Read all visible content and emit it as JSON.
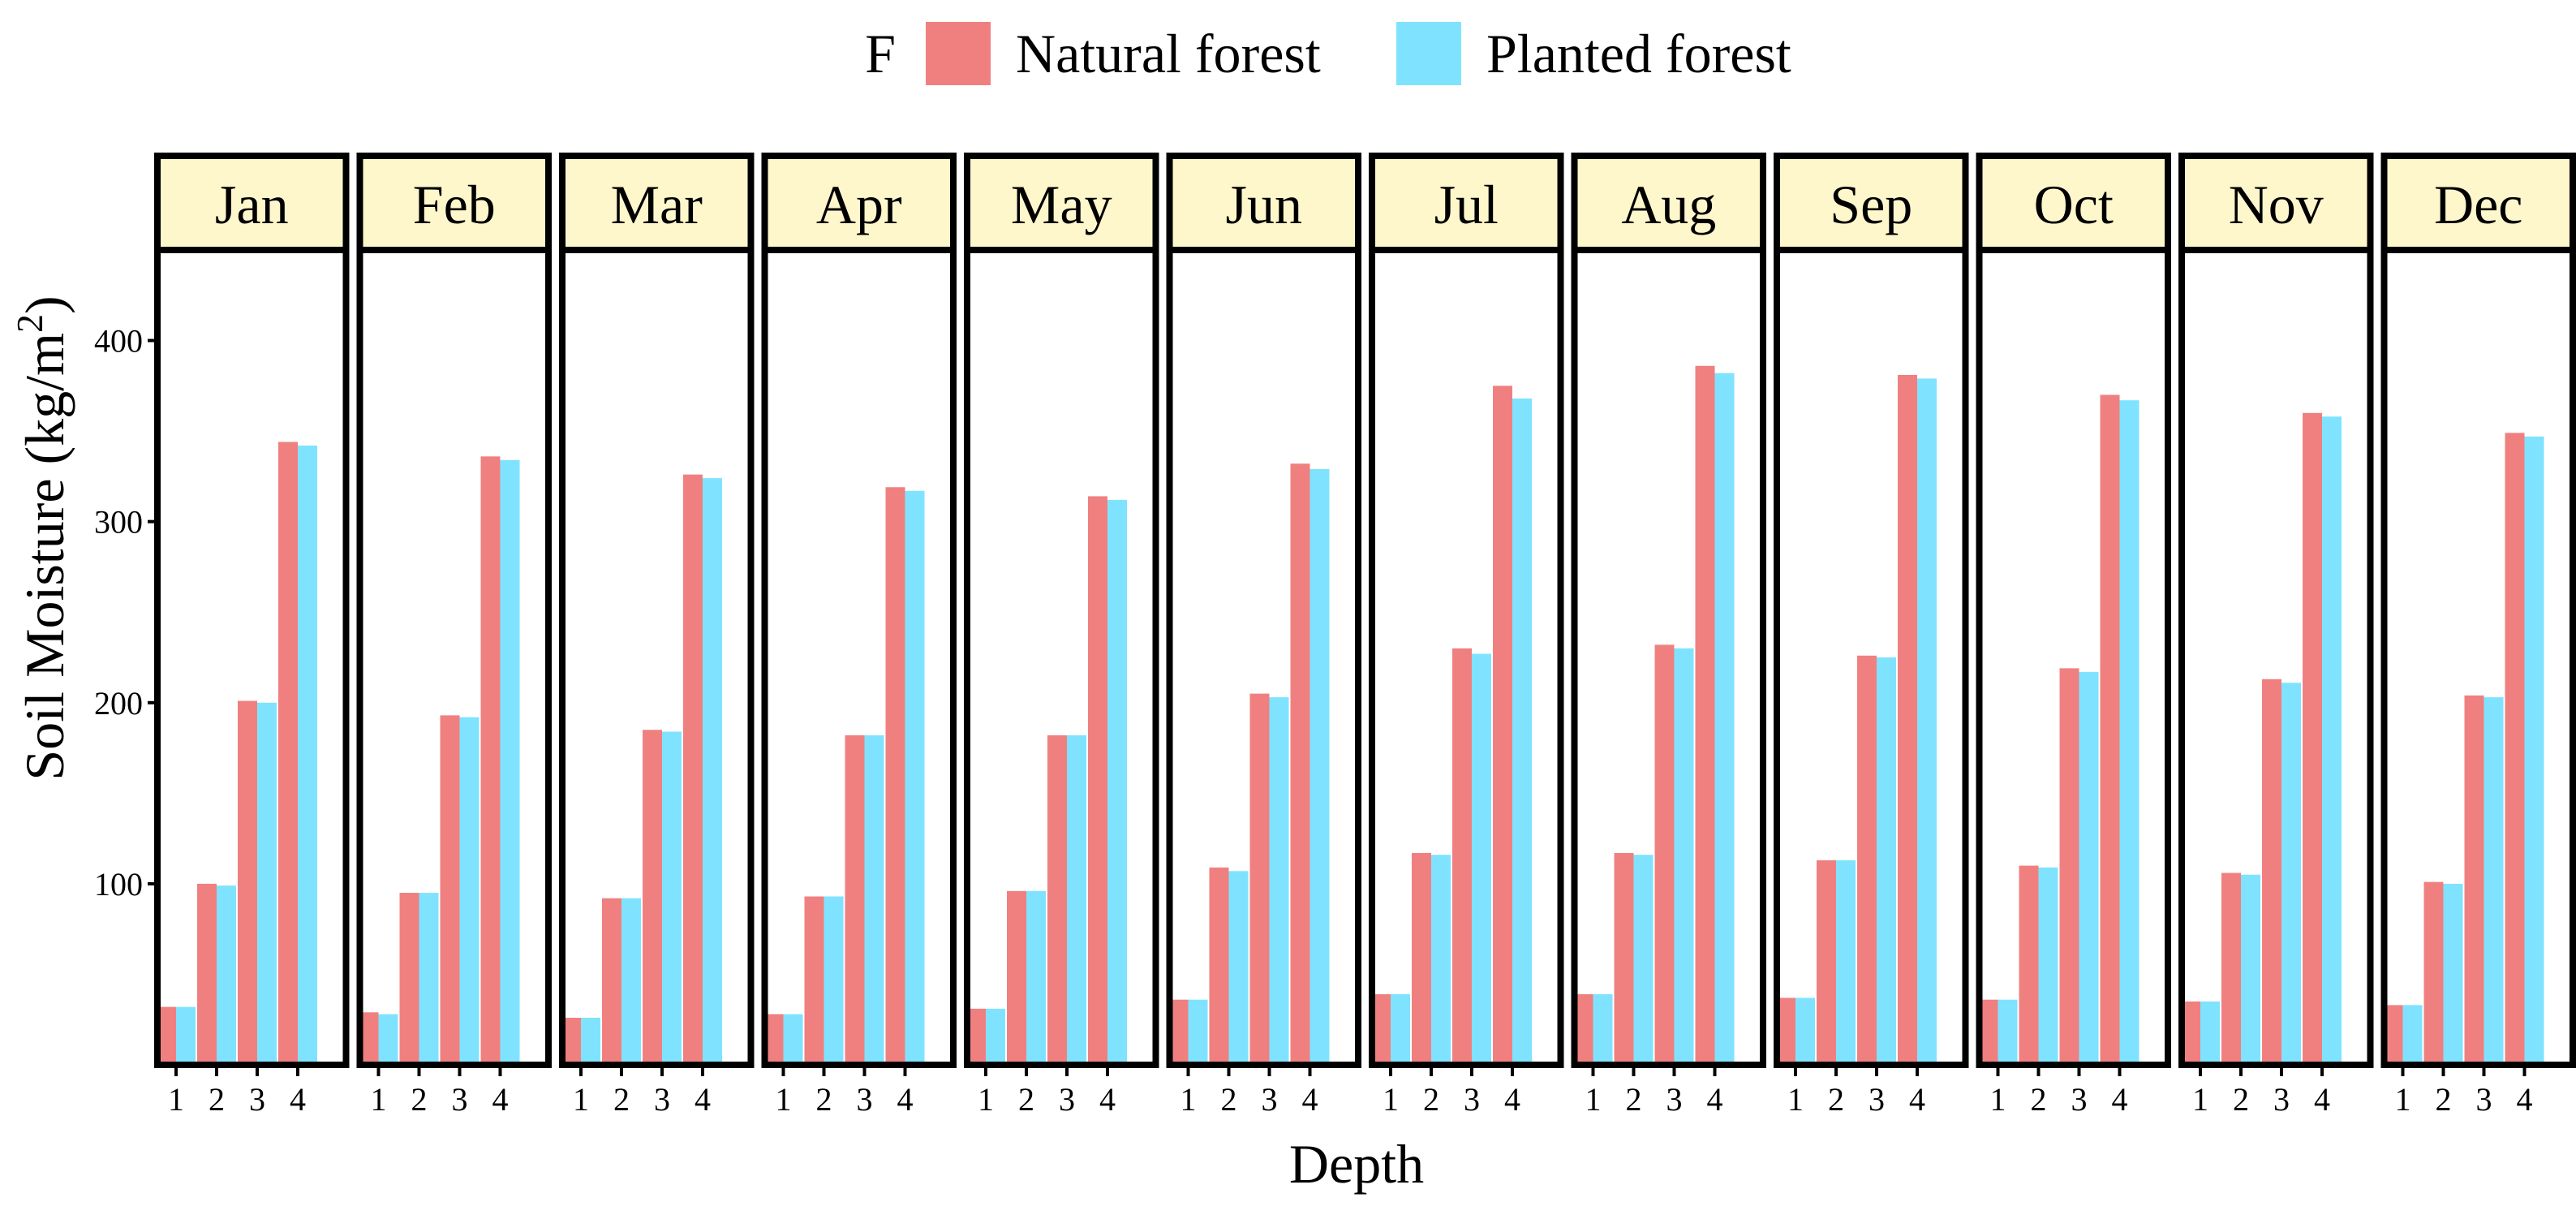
{
  "chart_data": {
    "type": "bar",
    "layout": "faceted",
    "legend": {
      "title": "F",
      "position": "top"
    },
    "xlabel": "Depth",
    "ylabel": "Soil Moisture  (kg/m",
    "ylabel_superscript": "2",
    "ylabel_close": ")",
    "ylim": [
      0,
      450
    ],
    "yticks": [
      100,
      200,
      300,
      400
    ],
    "categories": [
      "1",
      "2",
      "3",
      "4"
    ],
    "series": [
      {
        "name": "Natural forest",
        "color": "#F08080"
      },
      {
        "name": "Planted forest",
        "color": "#7FE3FF"
      }
    ],
    "strip_color": "#FFF7CC",
    "panels": [
      {
        "label": "Jan",
        "natural": [
          32,
          100,
          201,
          344
        ],
        "planted": [
          32,
          99,
          200,
          342
        ]
      },
      {
        "label": "Feb",
        "natural": [
          29,
          95,
          193,
          336
        ],
        "planted": [
          28,
          95,
          192,
          334
        ]
      },
      {
        "label": "Mar",
        "natural": [
          26,
          92,
          185,
          326
        ],
        "planted": [
          26,
          92,
          184,
          324
        ]
      },
      {
        "label": "Apr",
        "natural": [
          28,
          93,
          182,
          319
        ],
        "planted": [
          28,
          93,
          182,
          317
        ]
      },
      {
        "label": "May",
        "natural": [
          31,
          96,
          182,
          314
        ],
        "planted": [
          31,
          96,
          182,
          312
        ]
      },
      {
        "label": "Jun",
        "natural": [
          36,
          109,
          205,
          332
        ],
        "planted": [
          36,
          107,
          203,
          329
        ]
      },
      {
        "label": "Jul",
        "natural": [
          39,
          117,
          230,
          375
        ],
        "planted": [
          39,
          116,
          227,
          368
        ]
      },
      {
        "label": "Aug",
        "natural": [
          39,
          117,
          232,
          386
        ],
        "planted": [
          39,
          116,
          230,
          382
        ]
      },
      {
        "label": "Sep",
        "natural": [
          37,
          113,
          226,
          381
        ],
        "planted": [
          37,
          113,
          225,
          379
        ]
      },
      {
        "label": "Oct",
        "natural": [
          36,
          110,
          219,
          370
        ],
        "planted": [
          36,
          109,
          217,
          367
        ]
      },
      {
        "label": "Nov",
        "natural": [
          35,
          106,
          213,
          360
        ],
        "planted": [
          35,
          105,
          211,
          358
        ]
      },
      {
        "label": "Dec",
        "natural": [
          33,
          101,
          204,
          349
        ],
        "planted": [
          33,
          100,
          203,
          347
        ]
      }
    ]
  }
}
